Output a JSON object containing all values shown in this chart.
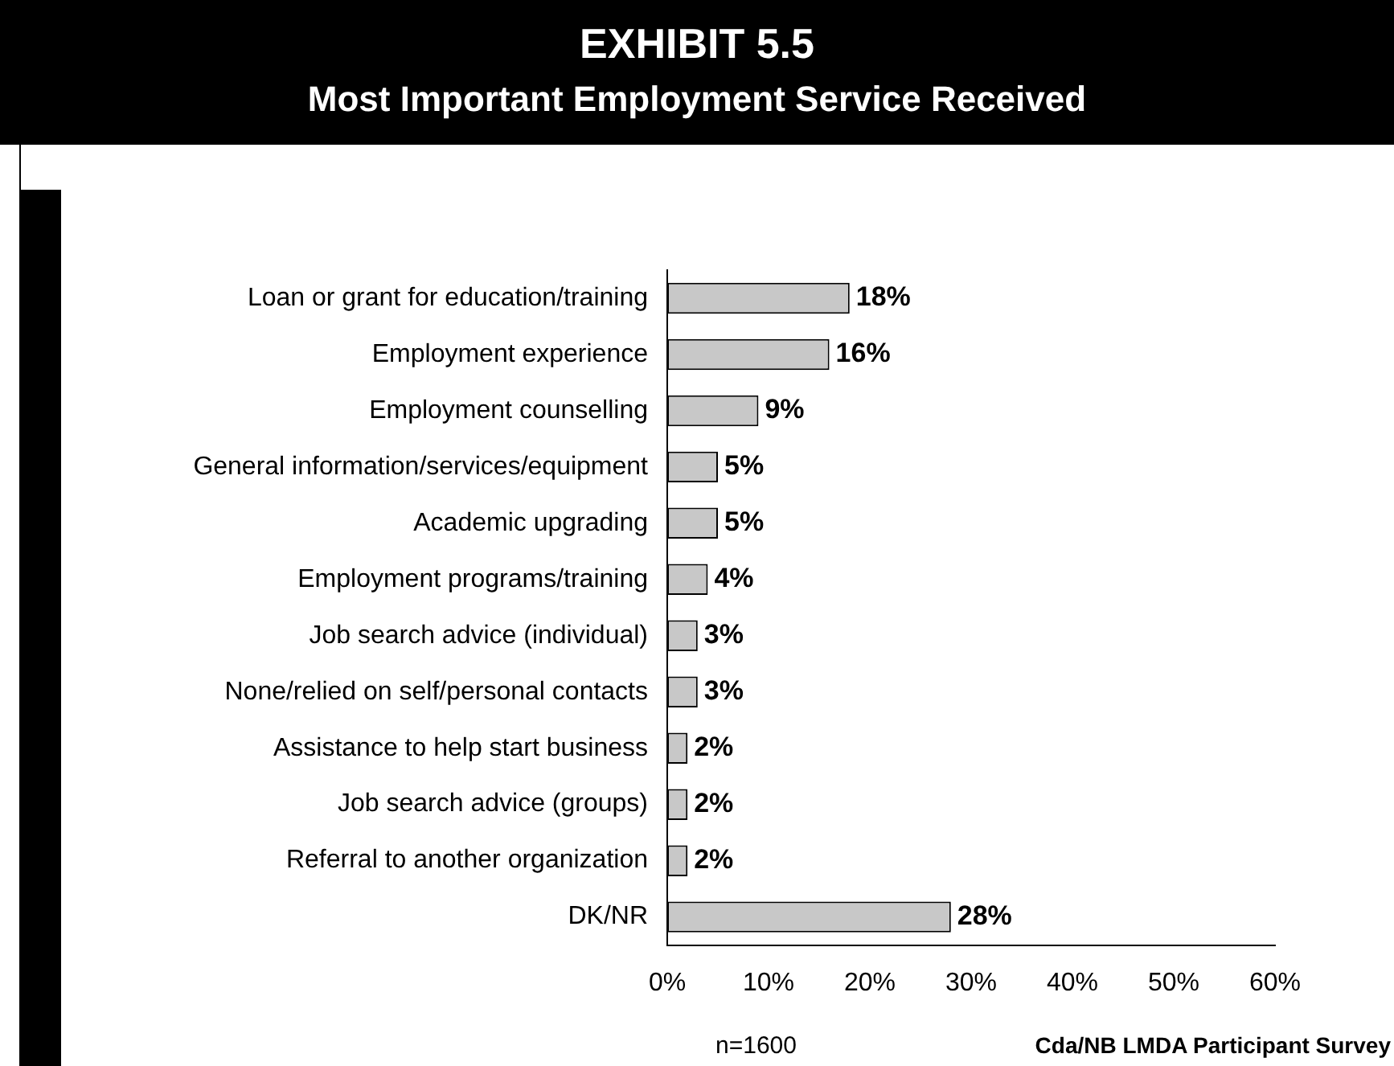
{
  "chart_data": {
    "type": "bar",
    "orientation": "horizontal",
    "title": "EXHIBIT 5.5",
    "subtitle": "Most Important Employment Service Received",
    "categories": [
      "Loan or grant for education/training",
      "Employment experience",
      "Employment counselling",
      "General information/services/equipment",
      "Academic upgrading",
      "Employment programs/training",
      "Job search advice (individual)",
      "None/relied on self/personal contacts",
      "Assistance to help start business",
      "Job search advice (groups)",
      "Referral to another organization",
      "DK/NR"
    ],
    "values": [
      18,
      16,
      9,
      5,
      5,
      4,
      3,
      3,
      2,
      2,
      2,
      28
    ],
    "value_labels": [
      "18%",
      "16%",
      "9%",
      "5%",
      "5%",
      "4%",
      "3%",
      "3%",
      "2%",
      "2%",
      "2%",
      "28%"
    ],
    "color": "#c8c8c8",
    "xlim": [
      0,
      60
    ],
    "xticks": [
      {
        "value": 0,
        "label": "0%"
      },
      {
        "value": 10,
        "label": "10%"
      },
      {
        "value": 20,
        "label": "20%"
      },
      {
        "value": 30,
        "label": "30%"
      },
      {
        "value": 40,
        "label": "40%"
      },
      {
        "value": 50,
        "label": "50%"
      },
      {
        "value": 60,
        "label": "60%"
      }
    ],
    "grid": false,
    "legend": false,
    "annotations": [
      "n=1600",
      "Cda/NB LMDA Participant Survey"
    ]
  }
}
